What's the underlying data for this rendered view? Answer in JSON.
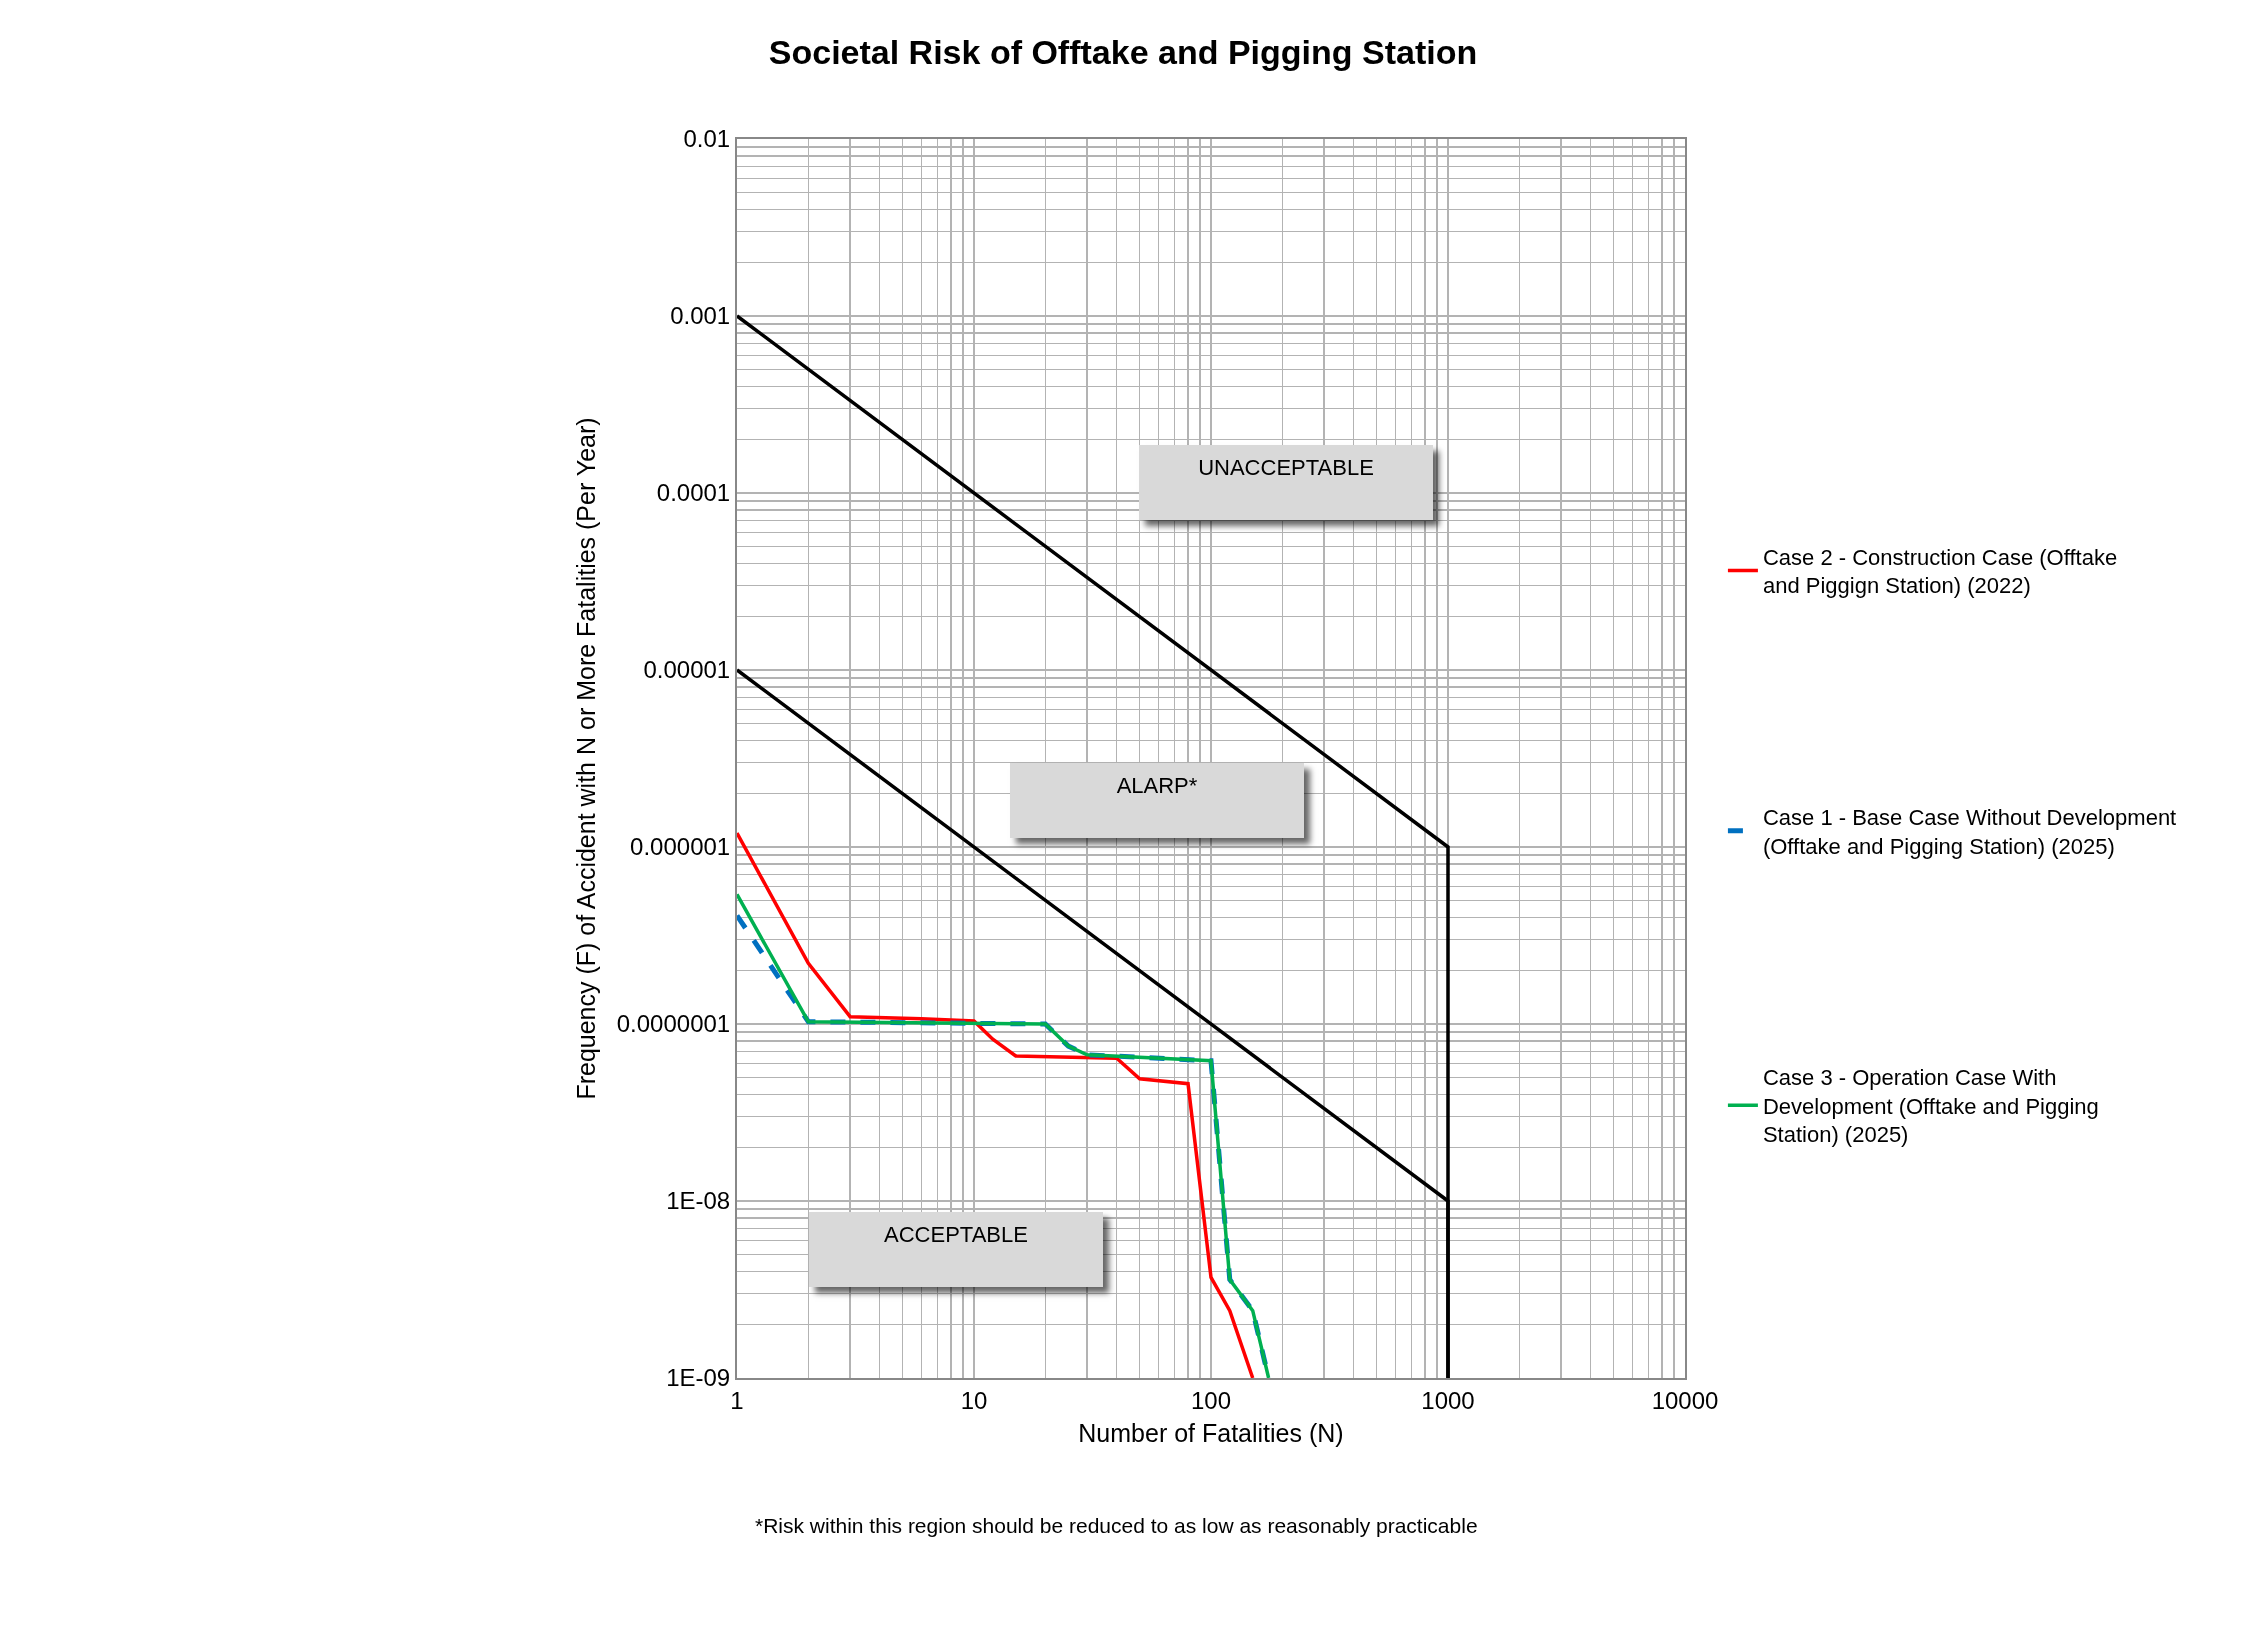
{
  "chart_data": {
    "type": "line",
    "title": "Societal Risk of Offtake and Pigging Station",
    "xlabel": "Number of Fatalities (N)",
    "ylabel": "Frequency (F) of Accident with N or More Fatalities (Per Year)",
    "log": "xy",
    "grid": true,
    "legend": "right",
    "marker": "none",
    "xlim": [
      1,
      10000
    ],
    "xticks": [
      1,
      10,
      100,
      1000,
      10000
    ],
    "ylim": [
      1e-09,
      0.01
    ],
    "yticks": [
      {
        "value": 0.01,
        "label": "0.01"
      },
      {
        "value": 0.001,
        "label": "0.001"
      },
      {
        "value": 0.0001,
        "label": "0.0001"
      },
      {
        "value": 1e-05,
        "label": "0.00001"
      },
      {
        "value": 1e-06,
        "label": "0.000001"
      },
      {
        "value": 1e-07,
        "label": "0.0000001"
      },
      {
        "value": 1e-08,
        "label": "1E-08"
      },
      {
        "value": 1e-09,
        "label": "1E-09"
      }
    ],
    "series": [
      {
        "name": "Case 2 - Construction Case (Offtake and Piggign Station) (2022)",
        "color": "#ff0000",
        "line_style": "solid",
        "x": [
          1,
          2,
          3,
          6,
          10,
          12,
          15,
          40,
          50,
          80,
          100,
          120,
          150
        ],
        "values": [
          1.2e-06,
          2.2e-07,
          1.1e-07,
          1.07e-07,
          1.04e-07,
          8.2e-08,
          6.6e-08,
          6.4e-08,
          4.9e-08,
          4.6e-08,
          3.7e-09,
          2.4e-09,
          1e-09
        ]
      },
      {
        "name": "Case 1 - Base Case Without Development (Offtake and Pigging Station) (2025)",
        "color": "#0070c0",
        "line_style": "dashed",
        "x": [
          1,
          2,
          20,
          25,
          30,
          100,
          120,
          150,
          175
        ],
        "values": [
          4.1e-07,
          1.03e-07,
          1e-07,
          7.5e-08,
          6.7e-08,
          6.2e-08,
          3.6e-09,
          2.4e-09,
          1e-09
        ]
      },
      {
        "name": "Case 3 - Operation Case With Development (Offtake and Pigging Station) (2025)",
        "color": "#00b050",
        "line_style": "solid",
        "x": [
          1,
          2,
          20,
          25,
          30,
          100,
          120,
          150,
          175
        ],
        "values": [
          5.4e-07,
          1.03e-07,
          1e-07,
          7.5e-08,
          6.7e-08,
          6.2e-08,
          3.6e-09,
          2.4e-09,
          1e-09
        ]
      },
      {
        "color": "#000000",
        "line_style": "solid",
        "x": [
          1,
          1000,
          1000
        ],
        "values": [
          0.001,
          1e-06,
          1e-09
        ]
      },
      {
        "color": "#000000",
        "line_style": "solid",
        "x": [
          1,
          1000,
          1000
        ],
        "values": [
          1e-05,
          1e-08,
          1e-09
        ]
      }
    ],
    "annotations": [
      "UNACCEPTABLE",
      "ALARP*",
      "ACCEPTABLE",
      "*Risk within this region should be reduced to as low as reasonably practicable"
    ]
  }
}
